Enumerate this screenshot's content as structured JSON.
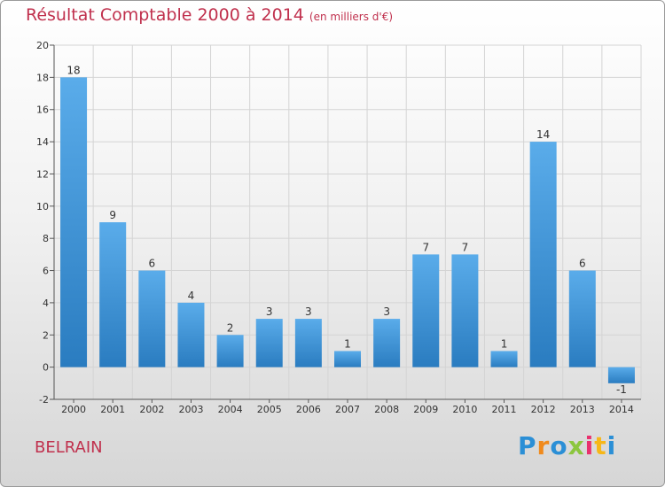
{
  "title": "Résultat Comptable 2000 à 2014",
  "subtitle": "(en milliers d'€)",
  "commune": "BELRAIN",
  "brand": {
    "letters": [
      "P",
      "r",
      "o",
      "x",
      "i",
      "t",
      "i"
    ],
    "colors": [
      "#2b8fd6",
      "#f08a1c",
      "#2b8fd6",
      "#8cc63f",
      "#e9316e",
      "#f7b718",
      "#2b8fd6"
    ]
  },
  "colors": {
    "title": "#c0304d",
    "bar_light": "#5aacea",
    "bar_dark": "#2a7cc0",
    "grid": "#d4d4d4",
    "axis": "#555555"
  },
  "chart_data": {
    "type": "bar",
    "title": "Résultat Comptable 2000 à 2014",
    "categories": [
      "2000",
      "2001",
      "2002",
      "2003",
      "2004",
      "2005",
      "2006",
      "2007",
      "2008",
      "2009",
      "2010",
      "2011",
      "2012",
      "2013",
      "2014"
    ],
    "values": [
      18,
      9,
      6,
      4,
      2,
      3,
      3,
      1,
      3,
      7,
      7,
      1,
      14,
      6,
      -1
    ],
    "ylim": [
      -2,
      20
    ],
    "yticks": [
      -2,
      0,
      2,
      4,
      6,
      8,
      10,
      12,
      14,
      16,
      18,
      20
    ],
    "xlabel": "",
    "ylabel": "",
    "grid": true
  }
}
